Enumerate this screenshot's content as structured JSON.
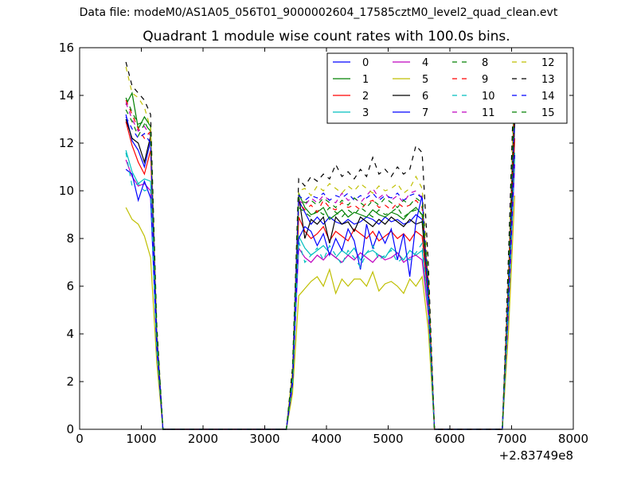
{
  "suptitle": "Data file: modeM0/AS1A05_056T01_9000002604_17585cztM0_level2_quad_clean.evt",
  "chart_data": {
    "type": "line",
    "title": "Quadrant 1 module wise count rates with 100.0s bins.",
    "xlabel": "",
    "ylabel": "",
    "xlim": [
      0,
      8000
    ],
    "ylim": [
      0,
      16
    ],
    "x_ticks": [
      0,
      1000,
      2000,
      3000,
      4000,
      5000,
      6000,
      7000,
      8000
    ],
    "y_ticks": [
      0,
      2,
      4,
      6,
      8,
      10,
      12,
      14,
      16
    ],
    "x_offset_label": "+2.83749e8",
    "grid": false,
    "legend_position": "top-right",
    "x": [
      750,
      850,
      950,
      1050,
      1150,
      1250,
      1350,
      3350,
      3450,
      3550,
      3650,
      3750,
      3850,
      3950,
      4050,
      4150,
      4250,
      4350,
      4450,
      4550,
      4650,
      4750,
      4850,
      4950,
      5050,
      5150,
      5250,
      5350,
      5450,
      5550,
      5650,
      5750,
      6850,
      6950,
      7050
    ],
    "series": [
      {
        "name": "0",
        "color": "#0000ff",
        "dash": "solid",
        "values": [
          13.2,
          12.1,
          11.7,
          11.0,
          12.1,
          4.0,
          0,
          0,
          2.2,
          9.6,
          9.1,
          8.6,
          8.9,
          8.6,
          8.9,
          8.7,
          8.6,
          8.8,
          8.6,
          8.7,
          8.9,
          8.8,
          8.6,
          8.9,
          8.7,
          8.8,
          8.6,
          8.7,
          9.0,
          8.8,
          5.8,
          0,
          0,
          6.0,
          12.8
        ]
      },
      {
        "name": "1",
        "color": "#008000",
        "dash": "solid",
        "values": [
          13.6,
          14.1,
          12.6,
          13.1,
          12.7,
          4.0,
          0,
          0,
          2.4,
          9.9,
          9.3,
          9.0,
          9.1,
          9.3,
          8.8,
          9.0,
          9.2,
          8.9,
          9.1,
          9.0,
          8.9,
          9.2,
          9.0,
          8.9,
          9.1,
          9.0,
          8.8,
          9.1,
          9.3,
          9.0,
          6.2,
          0,
          0,
          6.3,
          14.4
        ]
      },
      {
        "name": "2",
        "color": "#ff0000",
        "dash": "solid",
        "values": [
          12.9,
          11.9,
          11.2,
          10.7,
          11.7,
          3.7,
          0,
          0,
          2.0,
          8.9,
          8.3,
          8.0,
          8.2,
          8.5,
          7.9,
          8.3,
          8.1,
          7.9,
          8.4,
          8.2,
          8.0,
          8.3,
          7.9,
          8.1,
          8.3,
          8.0,
          8.2,
          7.9,
          8.3,
          8.1,
          5.4,
          0,
          0,
          5.6,
          12.2
        ]
      },
      {
        "name": "3",
        "color": "#00bfbf",
        "dash": "solid",
        "values": [
          11.7,
          10.8,
          10.3,
          10.5,
          10.4,
          3.6,
          0,
          0,
          1.9,
          8.1,
          7.6,
          7.3,
          7.5,
          7.7,
          7.4,
          7.2,
          7.5,
          7.3,
          7.6,
          7.1,
          7.4,
          7.5,
          7.3,
          7.2,
          7.6,
          7.4,
          7.1,
          7.5,
          7.3,
          7.5,
          5.0,
          0,
          0,
          5.1,
          11.6
        ]
      },
      {
        "name": "4",
        "color": "#bf00bf",
        "dash": "solid",
        "values": [
          11.3,
          10.6,
          10.2,
          10.3,
          10.0,
          3.5,
          0,
          0,
          1.8,
          7.6,
          7.2,
          7.0,
          7.3,
          7.1,
          7.4,
          7.2,
          7.0,
          7.3,
          7.1,
          7.4,
          7.2,
          7.0,
          7.3,
          7.1,
          7.2,
          7.4,
          7.0,
          7.2,
          7.3,
          7.1,
          4.8,
          0,
          0,
          4.9,
          11.1
        ]
      },
      {
        "name": "5",
        "color": "#bfbf00",
        "dash": "solid",
        "values": [
          9.3,
          8.8,
          8.6,
          8.1,
          7.2,
          2.8,
          0,
          0,
          1.5,
          5.6,
          5.9,
          6.2,
          6.4,
          6.0,
          6.7,
          5.7,
          6.3,
          6.0,
          6.3,
          6.3,
          6.0,
          6.6,
          5.8,
          6.1,
          6.2,
          6.0,
          5.7,
          6.3,
          6.0,
          6.4,
          4.2,
          0,
          0,
          4.1,
          9.8
        ]
      },
      {
        "name": "6",
        "color": "#000000",
        "dash": "solid",
        "values": [
          13.0,
          12.2,
          12.0,
          11.2,
          12.3,
          4.0,
          0,
          0,
          2.1,
          9.8,
          8.0,
          8.8,
          8.6,
          8.9,
          7.8,
          8.9,
          8.6,
          8.7,
          8.3,
          8.9,
          8.7,
          8.5,
          8.8,
          8.6,
          8.9,
          8.7,
          8.5,
          8.8,
          8.6,
          8.7,
          5.7,
          0,
          0,
          6.1,
          13.0
        ]
      },
      {
        "name": "7",
        "color": "#0000ff",
        "dash": "solid",
        "values": [
          10.9,
          10.7,
          9.6,
          10.4,
          9.7,
          3.4,
          0,
          0,
          1.9,
          8.0,
          8.5,
          8.3,
          7.7,
          8.2,
          7.3,
          8.0,
          7.5,
          8.4,
          7.9,
          6.7,
          8.6,
          7.6,
          8.3,
          7.8,
          8.4,
          7.1,
          8.2,
          6.4,
          8.7,
          9.8,
          5.3,
          0,
          0,
          5.2,
          11.5
        ]
      },
      {
        "name": "8",
        "color": "#008000",
        "dash": "dashed",
        "values": [
          13.4,
          12.9,
          12.3,
          12.8,
          12.5,
          4.1,
          0,
          0,
          2.3,
          9.3,
          9.1,
          8.9,
          9.2,
          9.0,
          9.3,
          9.1,
          8.9,
          9.2,
          9.0,
          9.3,
          9.1,
          8.9,
          9.2,
          9.0,
          9.1,
          9.3,
          8.9,
          9.1,
          9.2,
          9.0,
          6.0,
          0,
          0,
          6.2,
          13.7
        ]
      },
      {
        "name": "9",
        "color": "#ff0000",
        "dash": "dashed",
        "values": [
          13.8,
          13.2,
          12.6,
          12.2,
          12.5,
          4.0,
          0,
          0,
          2.2,
          9.5,
          9.2,
          9.4,
          9.1,
          9.6,
          9.3,
          9.2,
          9.5,
          9.3,
          9.4,
          9.2,
          9.5,
          9.6,
          9.3,
          9.4,
          9.2,
          9.5,
          9.3,
          9.4,
          9.6,
          9.3,
          6.1,
          0,
          0,
          6.2,
          13.9
        ]
      },
      {
        "name": "10",
        "color": "#00bfbf",
        "dash": "dashed",
        "values": [
          11.6,
          10.2,
          10.3,
          10.0,
          10.1,
          3.5,
          0,
          0,
          1.9,
          7.9,
          7.0,
          7.3,
          7.6,
          7.1,
          7.7,
          7.3,
          6.9,
          7.5,
          7.2,
          6.8,
          7.4,
          7.7,
          7.1,
          7.3,
          7.5,
          7.0,
          7.2,
          7.1,
          7.4,
          7.8,
          5.0,
          0,
          0,
          5.1,
          11.4
        ]
      },
      {
        "name": "11",
        "color": "#bf00bf",
        "dash": "dashed",
        "values": [
          13.7,
          13.0,
          12.5,
          12.7,
          12.3,
          4.0,
          0,
          0,
          2.3,
          9.6,
          9.4,
          9.7,
          9.5,
          9.8,
          9.6,
          9.5,
          9.9,
          9.6,
          9.7,
          9.5,
          9.8,
          10.1,
          9.7,
          9.9,
          9.6,
          9.8,
          9.5,
          9.9,
          10.0,
          9.7,
          6.2,
          0,
          0,
          6.3,
          14.0
        ]
      },
      {
        "name": "12",
        "color": "#bfbf00",
        "dash": "dashed",
        "values": [
          15.2,
          14.1,
          13.9,
          13.5,
          12.6,
          4.2,
          0,
          0,
          2.5,
          10.0,
          10.1,
          9.8,
          10.2,
          10.0,
          10.3,
          10.1,
          9.9,
          10.2,
          10.0,
          10.3,
          10.1,
          9.9,
          10.2,
          10.0,
          10.1,
          10.3,
          9.9,
          10.1,
          10.6,
          10.1,
          6.6,
          0,
          0,
          6.8,
          15.3
        ]
      },
      {
        "name": "13",
        "color": "#000000",
        "dash": "dashed",
        "values": [
          15.4,
          14.4,
          14.1,
          13.8,
          13.2,
          4.4,
          0,
          0,
          2.6,
          10.5,
          10.2,
          10.6,
          10.4,
          10.7,
          10.5,
          11.1,
          10.6,
          10.8,
          10.5,
          10.9,
          10.6,
          11.4,
          10.7,
          10.9,
          10.6,
          11.0,
          10.7,
          10.9,
          11.9,
          11.6,
          7.0,
          0,
          0,
          7.3,
          15.6
        ]
      },
      {
        "name": "14",
        "color": "#0000ff",
        "dash": "dashed",
        "values": [
          13.1,
          12.6,
          12.2,
          12.4,
          12.0,
          3.9,
          0,
          0,
          2.1,
          9.8,
          9.6,
          9.8,
          9.7,
          9.9,
          9.6,
          9.8,
          9.7,
          9.9,
          9.6,
          9.8,
          9.7,
          9.9,
          9.6,
          9.8,
          9.7,
          9.9,
          9.6,
          9.8,
          9.9,
          9.7,
          6.1,
          0,
          0,
          6.3,
          13.2
        ]
      },
      {
        "name": "15",
        "color": "#008000",
        "dash": "dashed",
        "values": [
          13.9,
          13.3,
          12.8,
          12.9,
          12.4,
          4.1,
          0,
          0,
          2.3,
          9.7,
          9.5,
          9.6,
          9.4,
          9.7,
          9.5,
          9.3,
          9.6,
          9.4,
          9.7,
          9.5,
          9.3,
          9.6,
          9.4,
          9.7,
          9.5,
          9.3,
          9.6,
          9.4,
          9.7,
          9.5,
          6.2,
          0,
          0,
          6.4,
          14.2
        ]
      }
    ]
  }
}
